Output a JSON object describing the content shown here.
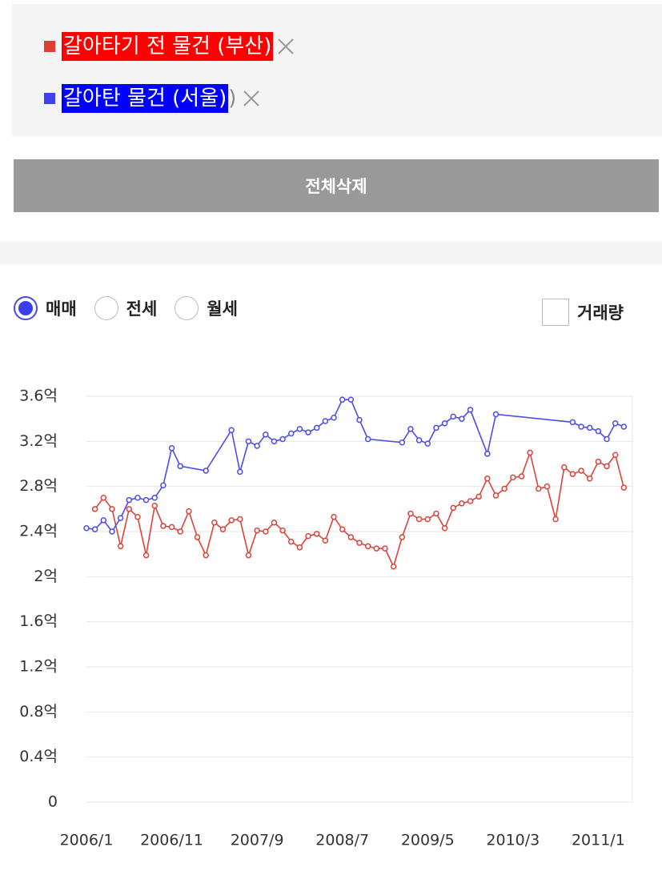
{
  "selection": {
    "trailing_text": ")"
  },
  "delete_all": "전체삭제",
  "options": {
    "radios": [
      "매매",
      "전세",
      "월세"
    ],
    "selected": 0,
    "checkbox": "거래량"
  },
  "chart_data": {
    "type": "line",
    "xlim": [
      "2006/1",
      "2011/5"
    ],
    "xticks": [
      "2006/1",
      "2006/11",
      "2007/9",
      "2008/7",
      "2009/5",
      "2010/3",
      "2011/1"
    ],
    "ylim": [
      0,
      3.6
    ],
    "yticks": [
      0,
      {
        "value": 0.4,
        "label": "0.4억"
      },
      {
        "value": 0.8,
        "label": "0.8억"
      },
      {
        "value": 1.2,
        "label": "1.2억"
      },
      {
        "value": 1.6,
        "label": "1.6억"
      },
      {
        "value": 2,
        "label": "2억"
      },
      {
        "value": 2.4,
        "label": "2.4억"
      },
      {
        "value": 2.8,
        "label": "2.8억"
      },
      {
        "value": 3.2,
        "label": "3.2억"
      },
      {
        "value": 3.6,
        "label": "3.6억"
      }
    ],
    "grid": true,
    "series": [
      {
        "name": "갈아타기 전 물건 (부산)",
        "color": "#d9433b",
        "x": [
          "2006/2",
          "2006/3",
          "2006/4",
          "2006/5",
          "2006/6",
          "2006/7",
          "2006/8",
          "2006/9",
          "2006/10",
          "2006/11",
          "2006/12",
          "2007/1",
          "2007/2",
          "2007/3",
          "2007/4",
          "2007/5",
          "2007/6",
          "2007/7",
          "2007/8",
          "2007/9",
          "2007/10",
          "2007/11",
          "2007/12",
          "2008/1",
          "2008/2",
          "2008/3",
          "2008/4",
          "2008/5",
          "2008/6",
          "2008/7",
          "2008/8",
          "2008/9",
          "2008/10",
          "2008/11",
          "2008/12",
          "2009/1",
          "2009/2",
          "2009/3",
          "2009/4",
          "2009/5",
          "2009/6",
          "2009/7",
          "2009/8",
          "2009/9",
          "2009/10",
          "2009/11",
          "2009/12",
          "2010/1",
          "2010/2",
          "2010/3",
          "2010/4",
          "2010/5",
          "2010/6",
          "2010/7",
          "2010/8",
          "2010/9",
          "2010/10",
          "2010/11",
          "2010/12",
          "2011/1",
          "2011/2",
          "2011/3",
          "2011/4"
        ],
        "values": [
          2.6,
          2.7,
          2.6,
          2.27,
          2.6,
          2.53,
          2.19,
          2.63,
          2.45,
          2.44,
          2.4,
          2.58,
          2.35,
          2.19,
          2.48,
          2.42,
          2.5,
          2.51,
          2.19,
          2.41,
          2.4,
          2.48,
          2.41,
          2.31,
          2.26,
          2.36,
          2.38,
          2.32,
          2.53,
          2.42,
          2.35,
          2.3,
          2.27,
          2.25,
          2.25,
          2.09,
          2.35,
          2.56,
          2.51,
          2.51,
          2.56,
          2.43,
          2.61,
          2.65,
          2.67,
          2.71,
          2.87,
          2.72,
          2.78,
          2.88,
          2.89,
          3.1,
          2.78,
          2.8,
          2.51,
          2.97,
          2.91,
          2.94,
          2.87,
          3.02,
          2.98,
          3.08,
          2.79
        ]
      },
      {
        "name": "갈아탄 물건 (서울)",
        "color": "#4c4ce6",
        "x": [
          "2006/1",
          "2006/2",
          "2006/3",
          "2006/4",
          "2006/5",
          "2006/6",
          "2006/7",
          "2006/8",
          "2006/9",
          "2006/10",
          "2006/11",
          "2006/12",
          "2007/3",
          "2007/6",
          "2007/7",
          "2007/8",
          "2007/9",
          "2007/10",
          "2007/11",
          "2007/12",
          "2008/1",
          "2008/2",
          "2008/3",
          "2008/4",
          "2008/5",
          "2008/6",
          "2008/7",
          "2008/8",
          "2008/9",
          "2008/10",
          "2009/2",
          "2009/3",
          "2009/4",
          "2009/5",
          "2009/6",
          "2009/7",
          "2009/8",
          "2009/9",
          "2009/10",
          "2009/12",
          "2010/1",
          "2010/10",
          "2010/11",
          "2010/12",
          "2011/1",
          "2011/2",
          "2011/3",
          "2011/4"
        ],
        "values": [
          2.43,
          2.42,
          2.5,
          2.4,
          2.52,
          2.68,
          2.7,
          2.68,
          2.7,
          2.81,
          3.14,
          2.98,
          2.94,
          3.3,
          2.93,
          3.2,
          3.16,
          3.26,
          3.2,
          3.22,
          3.27,
          3.31,
          3.28,
          3.32,
          3.38,
          3.41,
          3.57,
          3.57,
          3.39,
          3.22,
          3.19,
          3.31,
          3.21,
          3.18,
          3.32,
          3.36,
          3.42,
          3.4,
          3.48,
          3.09,
          3.44,
          3.37,
          3.33,
          3.32,
          3.29,
          3.22,
          3.36,
          3.33
        ]
      }
    ]
  }
}
